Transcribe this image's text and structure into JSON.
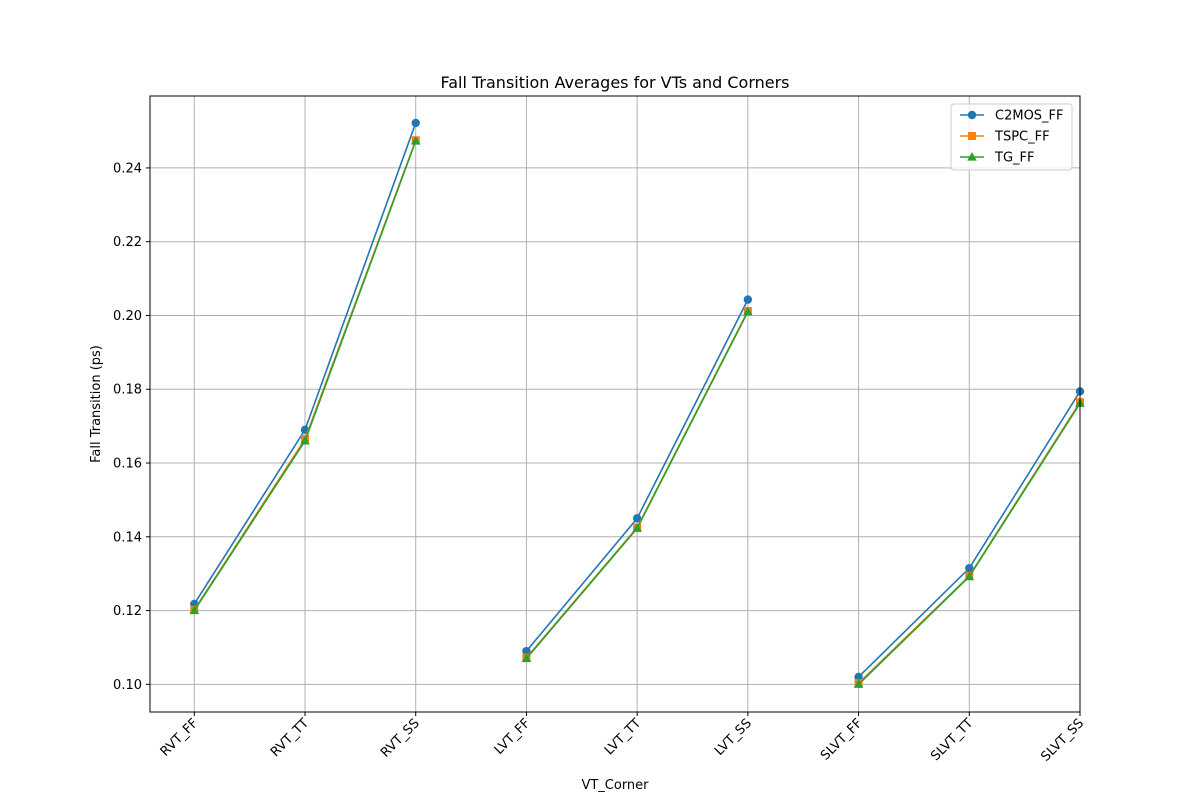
{
  "chart_data": {
    "type": "line",
    "title": "Fall Transition Averages for VTs and Corners",
    "xlabel": "VT_Corner",
    "ylabel": "Fall Transition (ps)",
    "categories": [
      "RVT_FF",
      "RVT_TT",
      "RVT_SS",
      "LVT_FF",
      "LVT_TT",
      "LVT_SS",
      "SLVT_FF",
      "SLVT_TT",
      "SLVT_SS"
    ],
    "segments": [
      [
        0,
        1,
        2
      ],
      [
        3,
        4,
        5
      ],
      [
        6,
        7,
        8
      ]
    ],
    "ylim": [
      0.0925,
      0.2595
    ],
    "yticks": [
      0.1,
      0.12,
      0.14,
      0.16,
      0.18,
      0.2,
      0.22,
      0.24
    ],
    "ytick_labels": [
      "0.10",
      "0.12",
      "0.14",
      "0.16",
      "0.18",
      "0.20",
      "0.22",
      "0.24"
    ],
    "grid": true,
    "legend_position": "top-right",
    "series": [
      {
        "name": "C2MOS_FF",
        "color": "#1f77b4",
        "marker": "circle",
        "values": [
          0.1218,
          0.169,
          0.2522,
          0.109,
          0.145,
          0.2043,
          0.102,
          0.1315,
          0.1794
        ]
      },
      {
        "name": "TSPC_FF",
        "color": "#ff7f0e",
        "marker": "square",
        "values": [
          0.1202,
          0.1665,
          0.2475,
          0.1072,
          0.1425,
          0.2012,
          0.1003,
          0.1294,
          0.1765
        ]
      },
      {
        "name": "TG_FF",
        "color": "#2ca02c",
        "marker": "triangle",
        "values": [
          0.12,
          0.166,
          0.2473,
          0.107,
          0.1423,
          0.201,
          0.1,
          0.1292,
          0.1762
        ]
      }
    ]
  }
}
